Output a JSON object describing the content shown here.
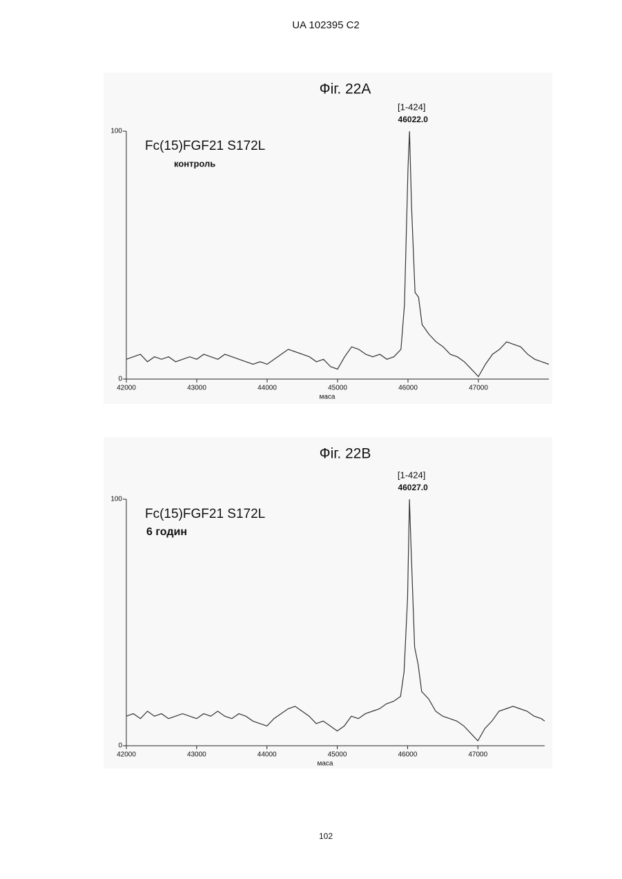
{
  "header": "UA   102395   C2",
  "page_number": "102",
  "chart_data": [
    {
      "type": "line",
      "title": "Фіг. 22A",
      "sample": "Fc(15)FGF21 S172L",
      "condition": "контроль",
      "annotations": [
        "[1-424]",
        "46022.0"
      ],
      "x_label": "маса",
      "color": "#333333",
      "xlim": [
        42000,
        48000
      ],
      "xticks": [
        42000,
        43000,
        44000,
        45000,
        46000,
        47000
      ],
      "ylim": [
        0,
        100
      ],
      "yticks": [
        0,
        100
      ],
      "x": [
        42000,
        42100,
        42200,
        42300,
        42400,
        42500,
        42600,
        42700,
        42800,
        42900,
        43000,
        43100,
        43200,
        43300,
        43400,
        43500,
        43600,
        43700,
        43800,
        43900,
        44000,
        44100,
        44200,
        44300,
        44400,
        44500,
        44600,
        44700,
        44800,
        44900,
        45000,
        45100,
        45200,
        45300,
        45400,
        45500,
        45600,
        45700,
        45800,
        45900,
        45950,
        46000,
        46022,
        46050,
        46100,
        46150,
        46200,
        46300,
        46400,
        46500,
        46600,
        46700,
        46800,
        46900,
        47000,
        47100,
        47200,
        47300,
        47400,
        47500,
        47600,
        47700,
        47800,
        47900,
        48000
      ],
      "values": [
        8,
        9,
        10,
        7,
        9,
        8,
        9,
        7,
        8,
        9,
        8,
        10,
        9,
        8,
        10,
        9,
        8,
        7,
        6,
        7,
        6,
        8,
        10,
        12,
        11,
        10,
        9,
        7,
        8,
        5,
        4,
        9,
        13,
        12,
        10,
        9,
        10,
        8,
        9,
        12,
        30,
        85,
        100,
        70,
        35,
        33,
        22,
        18,
        15,
        13,
        10,
        9,
        7,
        4,
        1,
        6,
        10,
        12,
        15,
        14,
        13,
        10,
        8,
        7,
        6
      ]
    },
    {
      "type": "line",
      "title": "Фіг. 22B",
      "sample": "Fc(15)FGF21 S172L",
      "condition": "6 годин",
      "annotations": [
        "[1-424]",
        "46027.0"
      ],
      "x_label": "маса",
      "color": "#333333",
      "xlim": [
        42000,
        47950
      ],
      "xticks": [
        42000,
        43000,
        44000,
        45000,
        46000,
        47000
      ],
      "ylim": [
        0,
        100
      ],
      "yticks": [
        0,
        100
      ],
      "x": [
        42000,
        42100,
        42200,
        42300,
        42400,
        42500,
        42600,
        42700,
        42800,
        42900,
        43000,
        43100,
        43200,
        43300,
        43400,
        43500,
        43600,
        43700,
        43800,
        43900,
        44000,
        44100,
        44200,
        44300,
        44400,
        44500,
        44600,
        44700,
        44800,
        44900,
        45000,
        45100,
        45200,
        45300,
        45400,
        45500,
        45600,
        45700,
        45800,
        45900,
        45950,
        46000,
        46027,
        46050,
        46100,
        46150,
        46200,
        46300,
        46400,
        46500,
        46600,
        46700,
        46800,
        46900,
        47000,
        47100,
        47200,
        47300,
        47400,
        47500,
        47600,
        47700,
        47800,
        47900,
        47950
      ],
      "values": [
        12,
        13,
        11,
        14,
        12,
        13,
        11,
        12,
        13,
        12,
        11,
        13,
        12,
        14,
        12,
        11,
        13,
        12,
        10,
        9,
        8,
        11,
        13,
        15,
        16,
        14,
        12,
        9,
        10,
        8,
        6,
        8,
        12,
        11,
        13,
        14,
        15,
        17,
        18,
        20,
        30,
        60,
        100,
        80,
        40,
        33,
        22,
        19,
        14,
        12,
        11,
        10,
        8,
        5,
        2,
        7,
        10,
        14,
        15,
        16,
        15,
        14,
        12,
        11,
        10
      ]
    }
  ]
}
